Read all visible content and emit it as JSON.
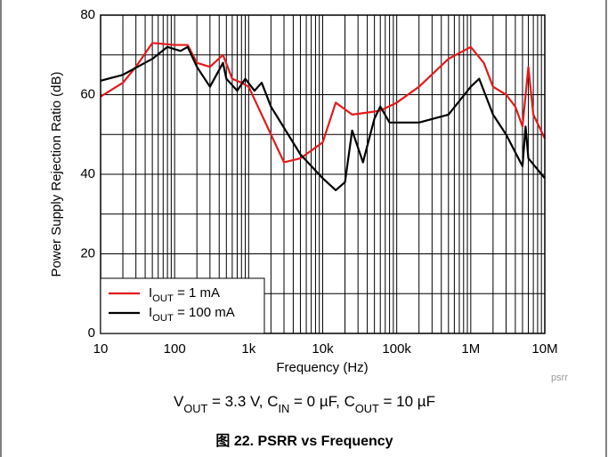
{
  "chart_data": {
    "type": "line",
    "title": "图 22. PSRR vs Frequency",
    "subtitle": [
      "V",
      "OUT",
      " = 3.3 V, C",
      "IN",
      " = 0 µF, C",
      "OUT",
      " = 10 µF"
    ],
    "xlabel": "Frequency (Hz)",
    "ylabel": "Power Supply Rejection Ratio (dB)",
    "annotation": "psrr",
    "xscale": "log",
    "xlim": [
      10,
      10000000
    ],
    "xticks": [
      10,
      100,
      {
        "value": 1000,
        "label": "1k"
      },
      {
        "value": 10000,
        "label": "10k"
      },
      {
        "value": 100000,
        "label": "100k"
      },
      {
        "value": 1000000,
        "label": "1M"
      },
      {
        "value": 10000000,
        "label": "10M"
      }
    ],
    "ylim": [
      0,
      80
    ],
    "yticks": [
      0,
      20,
      40,
      60,
      80
    ],
    "grid": true,
    "legend": "lower left",
    "series": [
      {
        "name": [
          "I",
          "OUT",
          " = 1 mA"
        ],
        "color": "#e41a1c",
        "x": [
          10,
          20,
          30,
          50,
          100,
          150,
          200,
          300,
          450,
          600,
          800,
          1000,
          2000,
          3000,
          5000,
          10000,
          15000,
          25000,
          40000,
          60000,
          100000,
          200000,
          500000,
          1000000,
          1500000,
          2000000,
          3000000,
          4000000,
          5000000,
          6000000,
          7000000,
          10000000
        ],
        "values": [
          59.5,
          63,
          67,
          73,
          72.5,
          72.5,
          68,
          67,
          70,
          64,
          63,
          62,
          50,
          43,
          44,
          48,
          58,
          55,
          55.5,
          56,
          58,
          62,
          69,
          72,
          68,
          62,
          60,
          57,
          52,
          67,
          55,
          49
        ]
      },
      {
        "name": [
          "I",
          "OUT",
          " = 100 mA"
        ],
        "color": "#000000",
        "x": [
          10,
          20,
          50,
          80,
          120,
          150,
          200,
          300,
          450,
          500,
          700,
          900,
          1200,
          1500,
          2000,
          5000,
          10000,
          15000,
          20000,
          25000,
          35000,
          50000,
          60000,
          80000,
          200000,
          500000,
          1000000,
          1300000,
          2000000,
          3000000,
          5000000,
          5500000,
          6000000,
          10000000
        ],
        "values": [
          63.5,
          65,
          69,
          72,
          71,
          72,
          67,
          62,
          68,
          64,
          61,
          64,
          61,
          63,
          57,
          45,
          39,
          36,
          38,
          51,
          43,
          54,
          57,
          53,
          53,
          55,
          62,
          64,
          55,
          50,
          42,
          52,
          44,
          39
        ]
      }
    ]
  }
}
